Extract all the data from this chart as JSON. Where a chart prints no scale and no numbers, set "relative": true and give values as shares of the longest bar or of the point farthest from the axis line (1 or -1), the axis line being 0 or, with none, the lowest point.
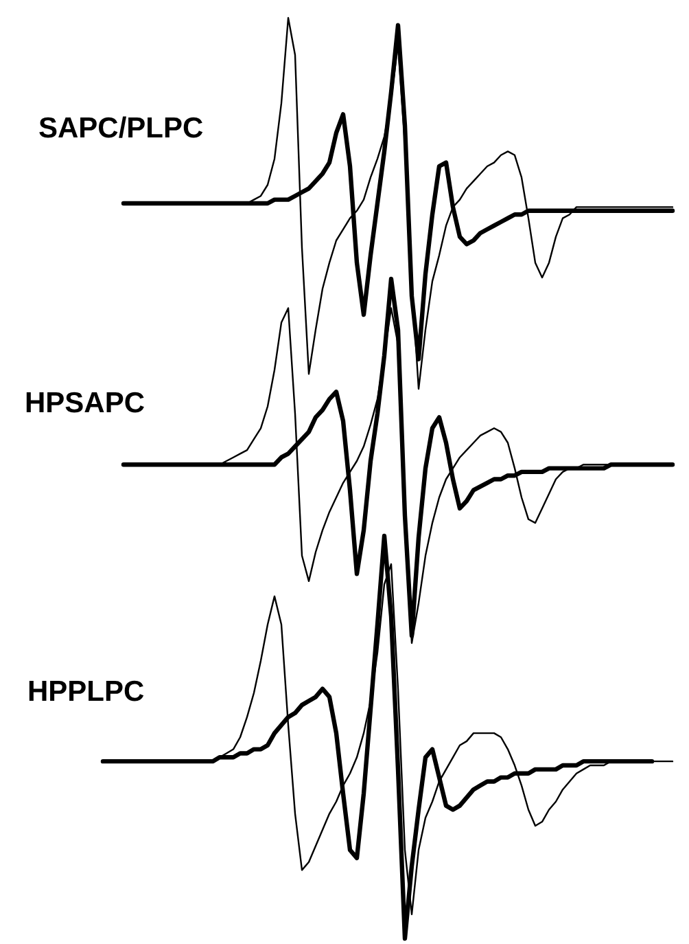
{
  "chart_data": [
    {
      "type": "line",
      "title": "SAPC/PLPC",
      "relative": true,
      "categories": [
        null,
        null,
        null,
        null,
        null,
        null,
        null,
        null,
        null,
        null,
        null,
        null,
        null,
        null,
        null,
        null,
        null,
        null,
        null,
        null,
        null,
        null,
        null,
        null,
        null,
        null,
        null,
        null,
        null,
        null,
        null,
        null,
        null,
        null,
        null,
        null,
        null,
        null,
        null,
        null,
        null,
        null,
        null,
        null,
        null,
        null,
        null,
        null,
        null,
        null,
        null,
        null,
        null,
        null,
        null,
        null,
        null,
        null,
        null,
        null,
        null,
        null,
        null,
        null,
        null,
        null,
        null,
        null,
        null,
        null,
        null,
        null,
        null,
        null,
        null,
        null,
        null,
        null,
        null,
        null,
        null
      ],
      "series": [
        {
          "color": "#000000",
          "values": [
            0.5,
            0.5,
            0.5,
            0.5,
            0.5,
            0.5,
            0.5,
            0.5,
            0.5,
            0.5,
            0.5,
            0.5,
            0.5,
            0.5,
            0.5,
            0.5,
            0.5,
            0.5,
            0.5,
            0.51,
            0.52,
            0.55,
            0.62,
            0.77,
            1.0,
            0.9,
            0.38,
            0.04,
            0.16,
            0.27,
            0.34,
            0.4,
            0.43,
            0.46,
            0.48,
            0.51,
            0.57,
            0.62,
            0.68,
            0.78,
            0.93,
            0.66,
            0.29,
            0.0,
            0.16,
            0.29,
            0.36,
            0.44,
            0.49,
            0.51,
            0.54,
            0.56,
            0.58,
            0.6,
            0.61,
            0.63,
            0.64,
            0.63,
            0.57,
            0.46,
            0.34,
            0.3,
            0.34,
            0.41,
            0.46,
            0.47,
            0.49,
            0.49,
            0.49,
            0.49,
            0.49,
            0.49,
            0.49,
            0.49,
            0.49,
            0.49,
            0.49,
            0.49,
            0.49,
            0.49,
            0.49
          ]
        },
        {
          "color": "#000000",
          "values": [
            0.5,
            0.5,
            0.5,
            0.5,
            0.5,
            0.5,
            0.5,
            0.5,
            0.5,
            0.5,
            0.5,
            0.5,
            0.5,
            0.5,
            0.5,
            0.5,
            0.5,
            0.5,
            0.5,
            0.5,
            0.5,
            0.5,
            0.51,
            0.51,
            0.51,
            0.52,
            0.53,
            0.54,
            0.56,
            0.58,
            0.61,
            0.69,
            0.74,
            0.6,
            0.34,
            0.2,
            0.36,
            0.5,
            0.64,
            0.8,
            0.98,
            0.71,
            0.25,
            0.08,
            0.31,
            0.47,
            0.6,
            0.61,
            0.49,
            0.41,
            0.39,
            0.4,
            0.42,
            0.43,
            0.44,
            0.45,
            0.46,
            0.47,
            0.47,
            0.48,
            0.48,
            0.48,
            0.48,
            0.48,
            0.48,
            0.48,
            0.48,
            0.48,
            0.48,
            0.48,
            0.48,
            0.48,
            0.48,
            0.48,
            0.48,
            0.48,
            0.48,
            0.48,
            0.48,
            0.48,
            0.48
          ]
        }
      ]
    },
    {
      "type": "line",
      "title": "HPSAPC",
      "relative": true,
      "categories": [
        null,
        null,
        null,
        null,
        null,
        null,
        null,
        null,
        null,
        null,
        null,
        null,
        null,
        null,
        null,
        null,
        null,
        null,
        null,
        null,
        null,
        null,
        null,
        null,
        null,
        null,
        null,
        null,
        null,
        null,
        null,
        null,
        null,
        null,
        null,
        null,
        null,
        null,
        null,
        null,
        null,
        null,
        null,
        null,
        null,
        null,
        null,
        null,
        null,
        null,
        null,
        null,
        null,
        null,
        null,
        null,
        null,
        null,
        null,
        null,
        null,
        null,
        null,
        null,
        null,
        null,
        null,
        null,
        null,
        null,
        null,
        null,
        null,
        null,
        null,
        null,
        null,
        null,
        null,
        null,
        null
      ],
      "series": [
        {
          "color": "#000000",
          "values": [
            0.49,
            0.49,
            0.49,
            0.49,
            0.49,
            0.49,
            0.49,
            0.49,
            0.49,
            0.49,
            0.49,
            0.49,
            0.49,
            0.49,
            0.49,
            0.5,
            0.51,
            0.52,
            0.53,
            0.56,
            0.59,
            0.65,
            0.75,
            0.88,
            0.92,
            0.63,
            0.24,
            0.17,
            0.25,
            0.31,
            0.36,
            0.4,
            0.44,
            0.47,
            0.5,
            0.54,
            0.6,
            0.67,
            0.79,
            0.92,
            0.82,
            0.37,
            0.0,
            0.11,
            0.24,
            0.33,
            0.4,
            0.45,
            0.48,
            0.51,
            0.53,
            0.55,
            0.57,
            0.58,
            0.59,
            0.58,
            0.55,
            0.48,
            0.4,
            0.34,
            0.33,
            0.37,
            0.41,
            0.45,
            0.47,
            0.48,
            0.48,
            0.49,
            0.49,
            0.49,
            0.49,
            0.49,
            0.49,
            0.49,
            0.49,
            0.49,
            0.49,
            0.49,
            0.49,
            0.49,
            0.49
          ]
        },
        {
          "color": "#000000",
          "values": [
            0.49,
            0.49,
            0.49,
            0.49,
            0.49,
            0.49,
            0.49,
            0.49,
            0.49,
            0.49,
            0.49,
            0.49,
            0.49,
            0.49,
            0.49,
            0.49,
            0.49,
            0.49,
            0.49,
            0.49,
            0.49,
            0.49,
            0.49,
            0.51,
            0.52,
            0.54,
            0.56,
            0.58,
            0.62,
            0.64,
            0.67,
            0.69,
            0.61,
            0.42,
            0.19,
            0.31,
            0.5,
            0.63,
            0.79,
            1.0,
            0.86,
            0.35,
            0.02,
            0.29,
            0.48,
            0.59,
            0.62,
            0.55,
            0.45,
            0.37,
            0.39,
            0.42,
            0.43,
            0.44,
            0.45,
            0.45,
            0.46,
            0.46,
            0.47,
            0.47,
            0.47,
            0.47,
            0.48,
            0.48,
            0.48,
            0.48,
            0.48,
            0.48,
            0.48,
            0.48,
            0.48,
            0.49,
            0.49,
            0.49,
            0.49,
            0.49,
            0.49,
            0.49,
            0.49,
            0.49,
            0.49
          ]
        }
      ]
    },
    {
      "type": "line",
      "title": "HPPLPC",
      "relative": true,
      "categories": [
        null,
        null,
        null,
        null,
        null,
        null,
        null,
        null,
        null,
        null,
        null,
        null,
        null,
        null,
        null,
        null,
        null,
        null,
        null,
        null,
        null,
        null,
        null,
        null,
        null,
        null,
        null,
        null,
        null,
        null,
        null,
        null,
        null,
        null,
        null,
        null,
        null,
        null,
        null,
        null,
        null,
        null,
        null,
        null,
        null,
        null,
        null,
        null,
        null,
        null,
        null,
        null,
        null,
        null,
        null,
        null,
        null,
        null,
        null,
        null,
        null,
        null,
        null,
        null,
        null,
        null,
        null,
        null,
        null,
        null,
        null,
        null,
        null,
        null,
        null,
        null,
        null,
        null,
        null,
        null,
        null,
        null,
        null,
        null
      ],
      "series": [
        {
          "color": "#000000",
          "values": [
            0.44,
            0.44,
            0.44,
            0.44,
            0.44,
            0.44,
            0.44,
            0.44,
            0.44,
            0.44,
            0.44,
            0.44,
            0.44,
            0.44,
            0.44,
            0.44,
            0.44,
            0.45,
            0.46,
            0.47,
            0.5,
            0.55,
            0.61,
            0.69,
            0.78,
            0.85,
            0.78,
            0.53,
            0.31,
            0.17,
            0.19,
            0.23,
            0.27,
            0.31,
            0.34,
            0.38,
            0.41,
            0.45,
            0.51,
            0.59,
            0.71,
            0.88,
            0.93,
            0.62,
            0.22,
            0.06,
            0.22,
            0.3,
            0.34,
            0.39,
            0.42,
            0.45,
            0.48,
            0.49,
            0.51,
            0.51,
            0.51,
            0.51,
            0.5,
            0.47,
            0.43,
            0.38,
            0.32,
            0.28,
            0.29,
            0.32,
            0.34,
            0.37,
            0.39,
            0.41,
            0.42,
            0.43,
            0.43,
            0.43,
            0.44,
            0.44,
            0.44,
            0.44,
            0.44,
            0.44,
            0.44,
            0.44,
            0.44,
            0.44
          ]
        },
        {
          "color": "#000000",
          "values": [
            0.44,
            0.44,
            0.44,
            0.44,
            0.44,
            0.44,
            0.44,
            0.44,
            0.44,
            0.44,
            0.44,
            0.44,
            0.44,
            0.44,
            0.44,
            0.44,
            0.44,
            0.45,
            0.45,
            0.45,
            0.46,
            0.46,
            0.47,
            0.47,
            0.48,
            0.51,
            0.53,
            0.55,
            0.56,
            0.58,
            0.59,
            0.6,
            0.62,
            0.6,
            0.51,
            0.36,
            0.22,
            0.2,
            0.36,
            0.57,
            0.78,
            1.0,
            0.8,
            0.42,
            0.0,
            0.18,
            0.32,
            0.45,
            0.47,
            0.4,
            0.33,
            0.32,
            0.33,
            0.35,
            0.37,
            0.38,
            0.39,
            0.39,
            0.4,
            0.4,
            0.41,
            0.41,
            0.41,
            0.42,
            0.42,
            0.42,
            0.42,
            0.43,
            0.43,
            0.43,
            0.44,
            0.44,
            0.44,
            0.44,
            0.44,
            0.44,
            0.44,
            0.44,
            0.44,
            0.44,
            0.44,
            null,
            null,
            null
          ]
        }
      ]
    }
  ]
}
